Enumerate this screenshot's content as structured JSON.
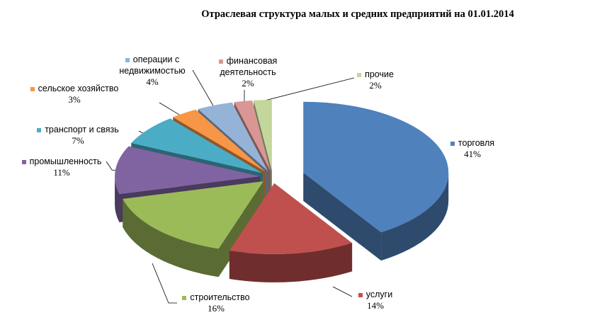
{
  "chart_data": {
    "type": "pie",
    "title": "Отраслевая структура малых и средних предприятий на 01.01.2014",
    "categories": [
      "торговля",
      "услуги",
      "строительство",
      "промышленность",
      "транспорт и связь",
      "сельское хозяйство",
      "операции с недвижимостью",
      "финансовая деятельность",
      "прочие"
    ],
    "values": [
      41,
      14,
      16,
      11,
      7,
      3,
      4,
      2,
      2
    ],
    "value_labels": [
      "41%",
      "14%",
      "16%",
      "11%",
      "7%",
      "3%",
      "4%",
      "2%",
      "2%"
    ],
    "colors": [
      "#4f81bd",
      "#c0504d",
      "#9bbb59",
      "#8064a2",
      "#4bacc6",
      "#f79646",
      "#95b3d7",
      "#d99694",
      "#c3d69b"
    ]
  }
}
